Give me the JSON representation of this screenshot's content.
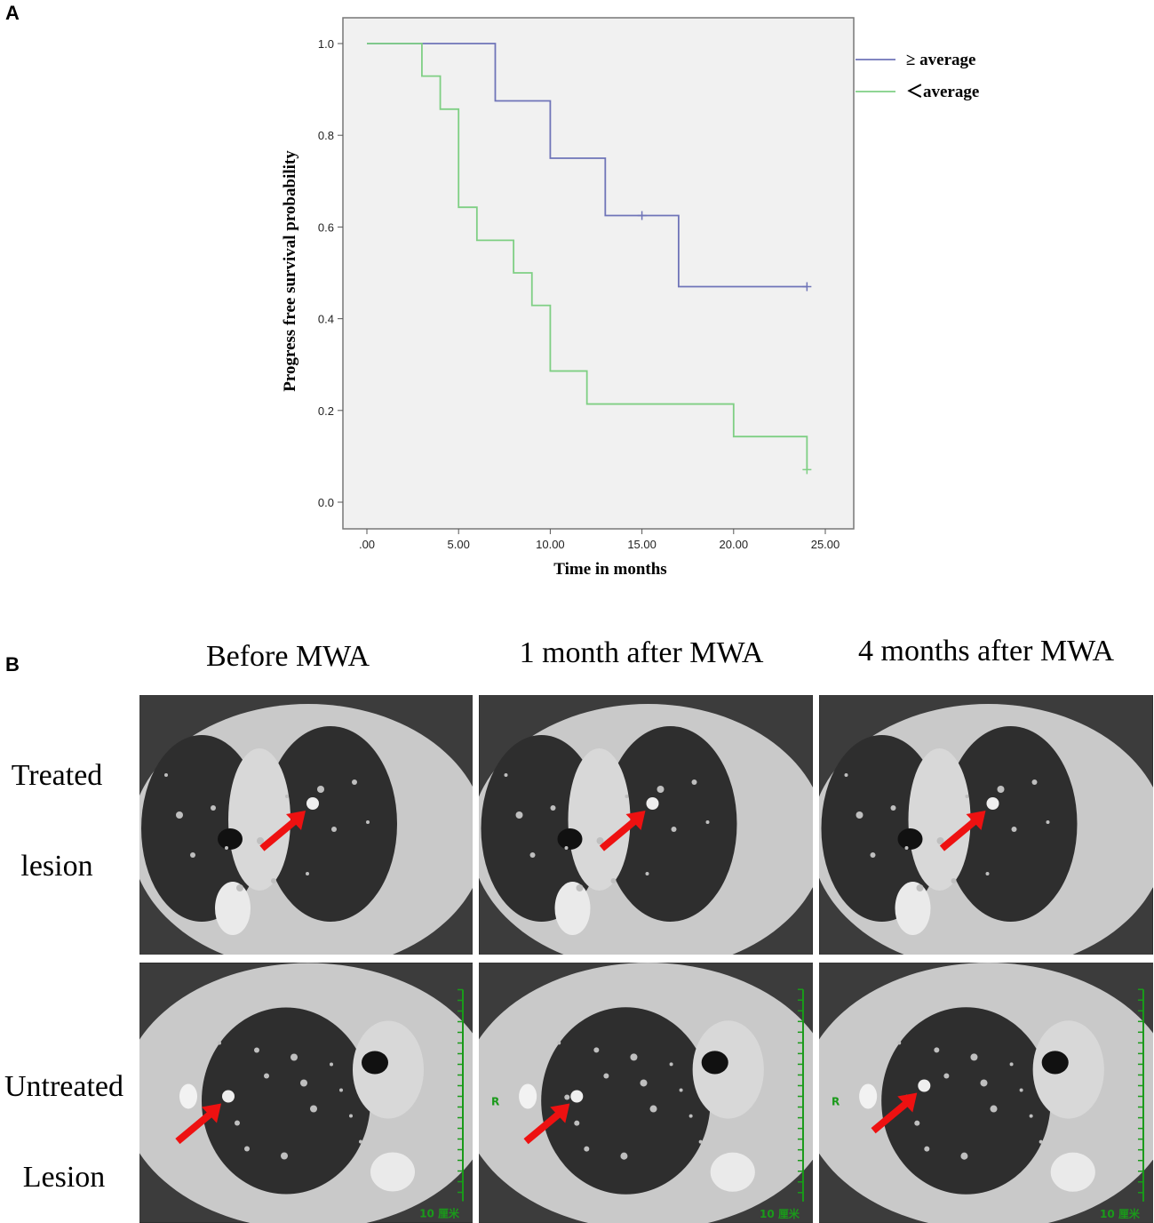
{
  "panel_a_label": "A",
  "panel_b_label": "B",
  "chart_data": {
    "type": "line",
    "subtype": "kaplan-meier-step",
    "xlabel": "Time in months",
    "ylabel": "Progress free survival probability",
    "xlim": [
      0,
      25
    ],
    "ylim": [
      0,
      1
    ],
    "x_ticks": [
      ".00",
      "5.00",
      "10.00",
      "15.00",
      "20.00",
      "25.00"
    ],
    "x_tick_values": [
      0,
      5,
      10,
      15,
      20,
      25
    ],
    "y_ticks": [
      "0.0",
      "0.2",
      "0.4",
      "0.6",
      "0.8",
      "1.0"
    ],
    "y_tick_values": [
      0,
      0.2,
      0.4,
      0.6,
      0.8,
      1.0
    ],
    "legend_position": "top-right (outside plot)",
    "grid": false,
    "series": [
      {
        "name": "≥ average",
        "color": "#6f74b8",
        "steps": [
          [
            0,
            1.0
          ],
          [
            7,
            0.875
          ],
          [
            10,
            0.75
          ],
          [
            13,
            0.625
          ],
          [
            17,
            0.47
          ],
          [
            24,
            0.47
          ]
        ],
        "censored": [
          [
            15,
            0.625
          ],
          [
            24,
            0.47
          ]
        ]
      },
      {
        "name": "＜average",
        "color": "#7fcf84",
        "steps": [
          [
            0,
            1.0
          ],
          [
            3,
            0.929
          ],
          [
            4,
            0.857
          ],
          [
            5,
            0.643
          ],
          [
            6,
            0.571
          ],
          [
            8,
            0.5
          ],
          [
            9,
            0.429
          ],
          [
            10,
            0.286
          ],
          [
            12,
            0.214
          ],
          [
            20,
            0.143
          ],
          [
            24,
            0.071
          ]
        ],
        "censored": [
          [
            24,
            0.071
          ]
        ]
      }
    ]
  },
  "panel_b": {
    "columns": [
      "Before MWA",
      "1 month after MWA",
      "4 months after MWA"
    ],
    "rows": [
      {
        "label_line1": "Treated",
        "label_line2": "lesion"
      },
      {
        "label_line1": "Untreated",
        "label_line2": "Lesion"
      }
    ],
    "ruler_label": "10 厘米",
    "side_marker": "R",
    "arrow_color": "#ee1111"
  }
}
